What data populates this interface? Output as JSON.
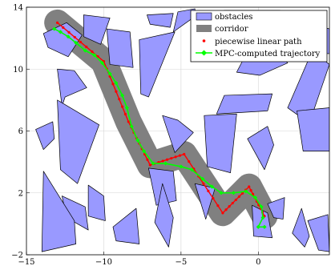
{
  "chart_data": {
    "type": "line",
    "title": "",
    "xlabel": "",
    "ylabel": "",
    "xlim": [
      -15,
      4.6
    ],
    "ylim": [
      -2,
      14
    ],
    "x_ticks": [
      -15,
      -10,
      -5,
      0
    ],
    "y_ticks": [
      -2,
      2,
      6,
      10,
      14
    ],
    "x_tick_labels": [
      "−15",
      "−10",
      "−5",
      "0"
    ],
    "y_tick_labels": [
      "−2",
      "2",
      "6",
      "10",
      "14"
    ],
    "grid": true,
    "legend_position": "top-right",
    "legend": [
      {
        "label": "obstacles",
        "kind": "patch",
        "color": "#9999ff"
      },
      {
        "label": "corridor",
        "kind": "patch",
        "color": "#808080"
      },
      {
        "label": "piecewise linear path",
        "kind": "dot",
        "color": "#ff0000"
      },
      {
        "label": "MPC-computed trajectory",
        "kind": "line-diamond",
        "color": "#00ff00"
      }
    ],
    "colors": {
      "obstacle_fill": "#9999ff",
      "obstacle_edge": "#000000",
      "corridor": "#808080",
      "path": "#ff0000",
      "trajectory": "#00ff00"
    },
    "corridor_radius": 0.85,
    "obstacles": [
      [
        [
          -13.9,
          12.3
        ],
        [
          -12.4,
          13.0
        ],
        [
          -11.4,
          12.2
        ],
        [
          -12.3,
          10.8
        ],
        [
          -13.6,
          11.4
        ]
      ],
      [
        [
          -11.3,
          13.5
        ],
        [
          -9.6,
          13.3
        ],
        [
          -10.2,
          11.6
        ],
        [
          -11.3,
          12.1
        ]
      ],
      [
        [
          -9.8,
          12.6
        ],
        [
          -8.3,
          12.4
        ],
        [
          -8.1,
          10.1
        ],
        [
          -9.6,
          10.3
        ]
      ],
      [
        [
          -7.2,
          13.5
        ],
        [
          -5.5,
          13.6
        ],
        [
          -5.7,
          12.7
        ],
        [
          -7.0,
          12.9
        ]
      ],
      [
        [
          -5.5,
          12.4
        ],
        [
          -4.1,
          13.4
        ],
        [
          -4.1,
          13.9
        ],
        [
          -5.2,
          13.7
        ]
      ],
      [
        [
          -7.7,
          11.9
        ],
        [
          -5.4,
          12.4
        ],
        [
          -7.1,
          8.2
        ],
        [
          -7.6,
          8.4
        ]
      ],
      [
        [
          -2.2,
          13.8
        ],
        [
          1.4,
          13.8
        ],
        [
          0.9,
          12.5
        ],
        [
          -1.4,
          12.4
        ]
      ],
      [
        [
          -1.4,
          9.8
        ],
        [
          0.1,
          9.6
        ],
        [
          1.9,
          10.4
        ],
        [
          -0.1,
          12.3
        ]
      ],
      [
        [
          2.2,
          11.0
        ],
        [
          3.8,
          12.8
        ],
        [
          4.6,
          12.6
        ],
        [
          4.6,
          11.0
        ]
      ],
      [
        [
          1.9,
          7.5
        ],
        [
          3.3,
          6.5
        ],
        [
          4.6,
          10.3
        ],
        [
          3.5,
          11.2
        ]
      ],
      [
        [
          -13.0,
          10.0
        ],
        [
          -11.9,
          9.9
        ],
        [
          -11.1,
          8.8
        ],
        [
          -12.5,
          8.2
        ],
        [
          -12.7,
          7.6
        ]
      ],
      [
        [
          -12.6,
          5.1
        ],
        [
          -11.2,
          4.9
        ],
        [
          -11.0,
          6.8
        ],
        [
          -12.4,
          6.9
        ]
      ],
      [
        [
          -13.0,
          8.0
        ],
        [
          -10.3,
          6.4
        ],
        [
          -11.7,
          2.6
        ],
        [
          -12.8,
          3.5
        ]
      ],
      [
        [
          -14.4,
          6.1
        ],
        [
          -13.3,
          6.6
        ],
        [
          -13.2,
          5.5
        ],
        [
          -13.9,
          4.8
        ]
      ],
      [
        [
          -6.2,
          7.0
        ],
        [
          -5.2,
          6.7
        ],
        [
          -4.2,
          5.9
        ],
        [
          -5.4,
          4.6
        ]
      ],
      [
        [
          -3.5,
          7.0
        ],
        [
          -1.4,
          7.1
        ],
        [
          -1.8,
          3.3
        ],
        [
          -3.3,
          3.7
        ]
      ],
      [
        [
          -2.7,
          7.1
        ],
        [
          0.6,
          7.3
        ],
        [
          0.9,
          8.4
        ],
        [
          -2.2,
          8.3
        ]
      ],
      [
        [
          -0.7,
          5.5
        ],
        [
          0.6,
          6.3
        ],
        [
          1.0,
          5.1
        ],
        [
          0.4,
          3.5
        ]
      ],
      [
        [
          2.5,
          7.3
        ],
        [
          2.9,
          4.7
        ],
        [
          4.6,
          4.7
        ],
        [
          4.6,
          7.5
        ]
      ],
      [
        [
          -12.7,
          1.8
        ],
        [
          -11.2,
          1.1
        ],
        [
          -11.0,
          -0.4
        ],
        [
          -12.4,
          0.4
        ]
      ],
      [
        [
          -13.9,
          3.4
        ],
        [
          -11.9,
          0.2
        ],
        [
          -11.8,
          -1.3
        ],
        [
          -14.0,
          -1.8
        ]
      ],
      [
        [
          -11.0,
          2.5
        ],
        [
          -10.0,
          1.8
        ],
        [
          -9.9,
          0.2
        ],
        [
          -11.0,
          0.5
        ]
      ],
      [
        [
          -9.4,
          -0.2
        ],
        [
          -7.9,
          1.0
        ],
        [
          -7.7,
          -1.3
        ],
        [
          -9.2,
          -1.1
        ]
      ],
      [
        [
          -7.1,
          3.6
        ],
        [
          -5.5,
          3.4
        ],
        [
          -5.3,
          1.5
        ],
        [
          -6.6,
          1.2
        ]
      ],
      [
        [
          -6.2,
          2.6
        ],
        [
          -5.5,
          0.4
        ],
        [
          -5.8,
          -1.5
        ],
        [
          -6.7,
          0.1
        ]
      ],
      [
        [
          -4.1,
          2.6
        ],
        [
          -3.4,
          0.3
        ],
        [
          -2.8,
          2.3
        ]
      ],
      [
        [
          -0.4,
          1.2
        ],
        [
          0.6,
          0.7
        ],
        [
          0.9,
          -0.9
        ],
        [
          -0.3,
          -0.8
        ]
      ],
      [
        [
          2.2,
          -0.6
        ],
        [
          2.8,
          1.0
        ],
        [
          3.3,
          -0.8
        ],
        [
          3.0,
          -1.5
        ]
      ],
      [
        [
          3.2,
          0.2
        ],
        [
          4.5,
          0.6
        ],
        [
          4.6,
          -1.8
        ],
        [
          3.9,
          -1.7
        ]
      ],
      [
        [
          0.6,
          1.3
        ],
        [
          1.7,
          1.7
        ],
        [
          1.6,
          0.3
        ],
        [
          1.0,
          0.4
        ]
      ]
    ],
    "path": [
      {
        "x": -13.0,
        "y": 13.0
      },
      {
        "x": -10.0,
        "y": 10.5
      },
      {
        "x": -8.4,
        "y": 6.6
      },
      {
        "x": -7.0,
        "y": 3.8
      },
      {
        "x": -4.8,
        "y": 4.5
      },
      {
        "x": -2.3,
        "y": 0.7
      },
      {
        "x": -0.6,
        "y": 2.4
      },
      {
        "x": 0.4,
        "y": 0.5
      }
    ],
    "path_points_per_segment": 8,
    "trajectory": [
      {
        "x": -13.2,
        "y": 12.6
      },
      {
        "x": -12.8,
        "y": 12.4
      },
      {
        "x": -12.3,
        "y": 12.1
      },
      {
        "x": -11.8,
        "y": 11.7
      },
      {
        "x": -11.2,
        "y": 11.2
      },
      {
        "x": -10.6,
        "y": 10.9
      },
      {
        "x": -10.1,
        "y": 10.4
      },
      {
        "x": -9.6,
        "y": 9.7
      },
      {
        "x": -9.2,
        "y": 9.1
      },
      {
        "x": -8.8,
        "y": 8.3
      },
      {
        "x": -8.5,
        "y": 7.5
      },
      {
        "x": -8.2,
        "y": 6.3
      },
      {
        "x": -7.8,
        "y": 5.4
      },
      {
        "x": -7.4,
        "y": 4.7
      },
      {
        "x": -6.8,
        "y": 3.9
      },
      {
        "x": -6.0,
        "y": 3.9
      },
      {
        "x": -5.0,
        "y": 3.7
      },
      {
        "x": -4.3,
        "y": 3.5
      },
      {
        "x": -3.6,
        "y": 2.9
      },
      {
        "x": -3.0,
        "y": 2.4
      },
      {
        "x": -2.4,
        "y": 2.0
      },
      {
        "x": -1.6,
        "y": 2.0
      },
      {
        "x": -0.8,
        "y": 2.1
      },
      {
        "x": -0.2,
        "y": 1.7
      },
      {
        "x": 0.2,
        "y": 1.1
      },
      {
        "x": 0.3,
        "y": 0.4
      },
      {
        "x": 0.0,
        "y": -0.2
      },
      {
        "x": 0.4,
        "y": -0.2
      }
    ]
  }
}
